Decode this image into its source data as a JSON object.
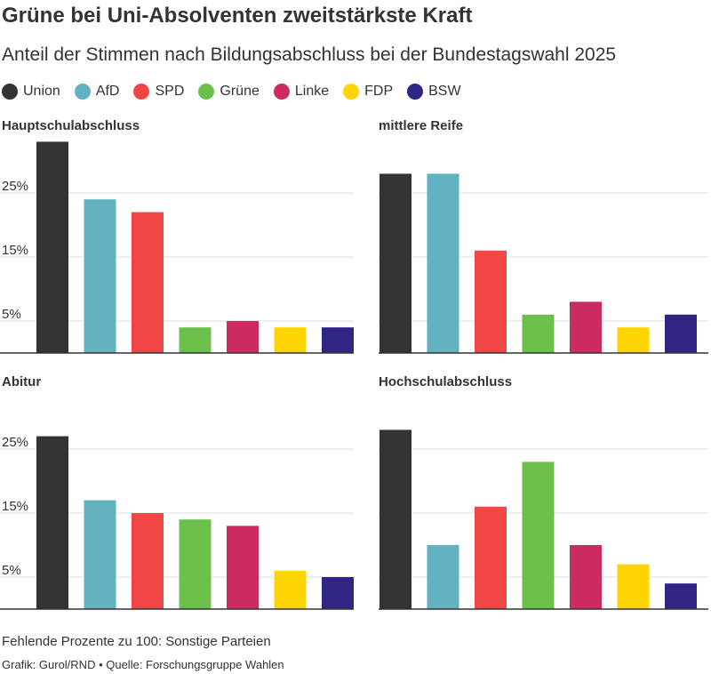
{
  "title": "Grüne bei Uni-Absolventen zweitstärkste Kraft",
  "subtitle": "Anteil der Stimmen nach Bildungsabschluss bei der Bundestagswahl 2025",
  "legend": [
    {
      "label": "Union",
      "color": "#333333"
    },
    {
      "label": "AfD",
      "color": "#62b2c2"
    },
    {
      "label": "SPD",
      "color": "#f24646"
    },
    {
      "label": "Grüne",
      "color": "#6bc04b"
    },
    {
      "label": "Linke",
      "color": "#cc2a63"
    },
    {
      "label": "FDP",
      "color": "#ffd500"
    },
    {
      "label": "BSW",
      "color": "#2f2683"
    }
  ],
  "chart_data": [
    {
      "type": "bar",
      "title": "Hauptschulabschluss",
      "categories": [
        "Union",
        "AfD",
        "SPD",
        "Grüne",
        "Linke",
        "FDP",
        "BSW"
      ],
      "values": [
        33,
        24,
        22,
        4,
        5,
        4,
        4
      ],
      "ylim": [
        0,
        33
      ],
      "yticks": [
        "25%",
        "15%",
        "5%"
      ],
      "ytick_values": [
        25,
        15,
        5
      ],
      "grid": true
    },
    {
      "type": "bar",
      "title": "mittlere Reife",
      "categories": [
        "Union",
        "AfD",
        "SPD",
        "Grüne",
        "Linke",
        "FDP",
        "BSW"
      ],
      "values": [
        28,
        28,
        16,
        6,
        8,
        4,
        6
      ],
      "ylim": [
        0,
        33
      ],
      "ytick_values": [
        25,
        15,
        5
      ],
      "grid": true
    },
    {
      "type": "bar",
      "title": "Abitur",
      "categories": [
        "Union",
        "AfD",
        "SPD",
        "Grüne",
        "Linke",
        "FDP",
        "BSW"
      ],
      "values": [
        27,
        17,
        15,
        14,
        13,
        6,
        5
      ],
      "ylim": [
        0,
        33
      ],
      "yticks": [
        "25%",
        "15%",
        "5%"
      ],
      "ytick_values": [
        25,
        15,
        5
      ],
      "grid": true
    },
    {
      "type": "bar",
      "title": "Hochschulabschluss",
      "categories": [
        "Union",
        "AfD",
        "SPD",
        "Grüne",
        "Linke",
        "FDP",
        "BSW"
      ],
      "values": [
        28,
        10,
        16,
        23,
        10,
        7,
        4
      ],
      "ylim": [
        0,
        33
      ],
      "ytick_values": [
        25,
        15,
        5
      ],
      "grid": true
    }
  ],
  "footer": {
    "note": "Fehlende Prozente zu 100: Sonstige Parteien",
    "credit": "Grafik: Gurol/RND • Quelle: Forschungsgruppe Wahlen"
  }
}
